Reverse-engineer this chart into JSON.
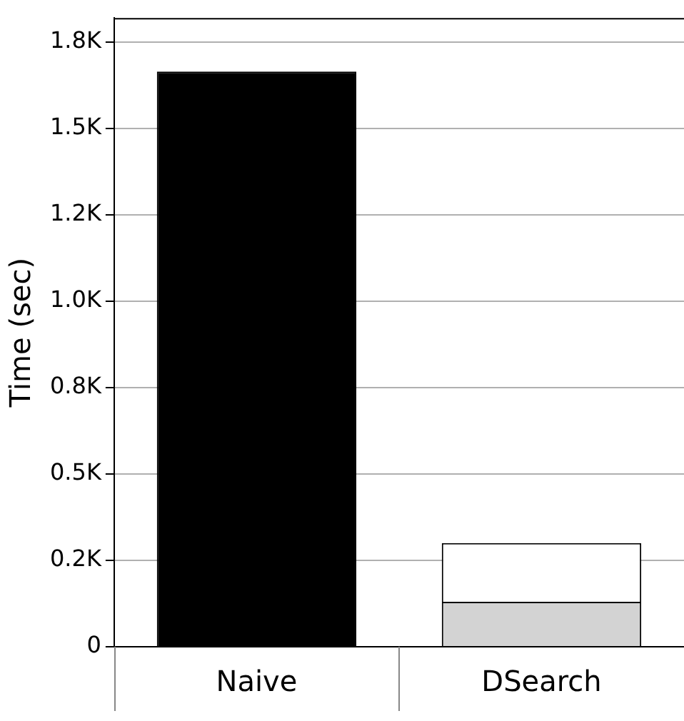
{
  "chart_data": {
    "type": "bar",
    "stacked": true,
    "ylabel": "Time (sec)",
    "categories": [
      "Naive",
      "DSearch"
    ],
    "series": [
      {
        "colors": [
          "#000000",
          "#d3d3d3"
        ],
        "values": [
          1665,
          130
        ]
      },
      {
        "color": "#ffffff",
        "values": [
          null,
          170
        ]
      }
    ],
    "ylim": [
      0,
      1820
    ],
    "yticks": [
      0,
      {
        "value": 250,
        "label": "0.2K"
      },
      {
        "value": 500,
        "label": "0.5K"
      },
      {
        "value": 750,
        "label": "0.8K"
      },
      {
        "value": 1000,
        "label": "1.0K"
      },
      {
        "value": 1250,
        "label": "1.2K"
      },
      {
        "value": 1500,
        "label": "1.5K"
      },
      {
        "value": 1750,
        "label": "1.8K"
      }
    ],
    "grid": "y",
    "legend": false
  }
}
